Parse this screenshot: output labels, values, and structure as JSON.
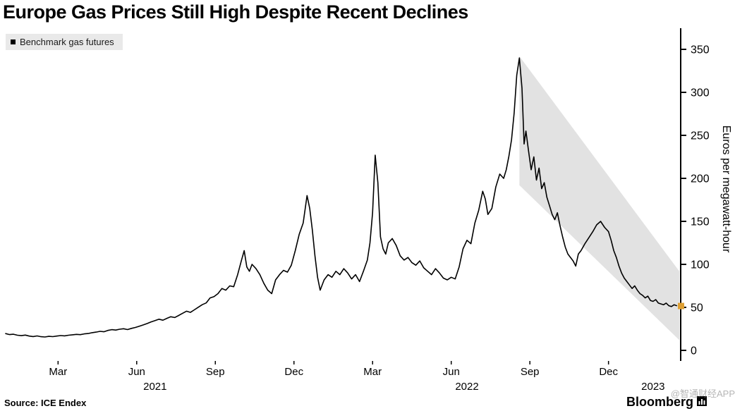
{
  "chart_data": {
    "type": "line",
    "title": "Europe Gas Prices Still High Despite Recent Declines",
    "legend": "Benchmark gas futures",
    "ylabel": "Euros per megawatt-hour",
    "source": "Source: ICE Endex",
    "brand": "Bloomberg",
    "watermark": "@智通财经APP",
    "ylim": [
      0,
      350
    ],
    "yticks": [
      0,
      50,
      100,
      150,
      200,
      250,
      300,
      350
    ],
    "x_unit": "months since Jan 2021",
    "xlim": [
      0,
      25.7
    ],
    "xticks": [
      {
        "label": "Mar",
        "m": 2
      },
      {
        "label": "Jun",
        "m": 5
      },
      {
        "label": "Sep",
        "m": 8
      },
      {
        "label": "Dec",
        "m": 11
      },
      {
        "label": "Mar",
        "m": 14
      },
      {
        "label": "Jun",
        "m": 17
      },
      {
        "label": "Sep",
        "m": 20
      },
      {
        "label": "Dec",
        "m": 23
      }
    ],
    "year_labels": [
      {
        "label": "2021",
        "m": 5.7
      },
      {
        "label": "2022",
        "m": 17.6
      },
      {
        "label": "2023",
        "m": 24.7
      }
    ],
    "band": {
      "x": [
        19.6,
        25.7
      ],
      "top": [
        342,
        92
      ],
      "bottom": [
        192,
        12
      ],
      "fill": "#e2e2e2"
    },
    "last_price_marker": {
      "value": 52,
      "color": "#dd9f33"
    },
    "colors": {
      "line": "#000000",
      "axis": "#000000",
      "legend_bg": "#e9e9e9"
    },
    "series": [
      {
        "name": "Benchmark gas futures",
        "color": "#000000",
        "points": [
          [
            0,
            19.5
          ],
          [
            0.15,
            18.4
          ],
          [
            0.3,
            18.8
          ],
          [
            0.45,
            17.6
          ],
          [
            0.6,
            17.1
          ],
          [
            0.75,
            17.8
          ],
          [
            0.9,
            16.6
          ],
          [
            1.05,
            16.1
          ],
          [
            1.2,
            16.8
          ],
          [
            1.35,
            15.9
          ],
          [
            1.5,
            15.6
          ],
          [
            1.65,
            16.3
          ],
          [
            1.8,
            16.0
          ],
          [
            1.95,
            16.6
          ],
          [
            2.1,
            17.2
          ],
          [
            2.25,
            16.9
          ],
          [
            2.4,
            17.6
          ],
          [
            2.55,
            18.1
          ],
          [
            2.7,
            18.6
          ],
          [
            2.85,
            18.3
          ],
          [
            3.0,
            19.2
          ],
          [
            3.15,
            19.6
          ],
          [
            3.3,
            20.6
          ],
          [
            3.45,
            21.2
          ],
          [
            3.6,
            22.1
          ],
          [
            3.75,
            21.6
          ],
          [
            3.9,
            23.2
          ],
          [
            4.05,
            24.1
          ],
          [
            4.2,
            23.6
          ],
          [
            4.35,
            24.6
          ],
          [
            4.5,
            25.2
          ],
          [
            4.65,
            24.2
          ],
          [
            4.8,
            25.6
          ],
          [
            4.95,
            26.6
          ],
          [
            5.1,
            28.1
          ],
          [
            5.25,
            29.6
          ],
          [
            5.4,
            31.2
          ],
          [
            5.55,
            33.1
          ],
          [
            5.7,
            34.6
          ],
          [
            5.85,
            36.2
          ],
          [
            6.0,
            35.1
          ],
          [
            6.15,
            37.2
          ],
          [
            6.3,
            39.1
          ],
          [
            6.45,
            38.2
          ],
          [
            6.6,
            40.6
          ],
          [
            6.75,
            43.1
          ],
          [
            6.9,
            45.6
          ],
          [
            7.05,
            44.2
          ],
          [
            7.2,
            47.1
          ],
          [
            7.35,
            50.2
          ],
          [
            7.5,
            53.1
          ],
          [
            7.65,
            55.2
          ],
          [
            7.8,
            61.0
          ],
          [
            7.95,
            62.5
          ],
          [
            8.1,
            66.0
          ],
          [
            8.25,
            72.0
          ],
          [
            8.4,
            70.0
          ],
          [
            8.55,
            75.0
          ],
          [
            8.7,
            74.0
          ],
          [
            8.85,
            88.0
          ],
          [
            9.0,
            105.0
          ],
          [
            9.1,
            116.0
          ],
          [
            9.2,
            97.0
          ],
          [
            9.3,
            92.0
          ],
          [
            9.4,
            100.0
          ],
          [
            9.55,
            95.0
          ],
          [
            9.7,
            88.0
          ],
          [
            9.85,
            78.0
          ],
          [
            10.0,
            70.0
          ],
          [
            10.15,
            66.0
          ],
          [
            10.3,
            82.0
          ],
          [
            10.45,
            88.0
          ],
          [
            10.6,
            93.0
          ],
          [
            10.75,
            91.0
          ],
          [
            10.9,
            99.0
          ],
          [
            11.05,
            116.0
          ],
          [
            11.2,
            135.0
          ],
          [
            11.35,
            148.0
          ],
          [
            11.5,
            180.0
          ],
          [
            11.6,
            165.0
          ],
          [
            11.7,
            140.0
          ],
          [
            11.8,
            110.0
          ],
          [
            11.9,
            85.0
          ],
          [
            12.0,
            70.0
          ],
          [
            12.15,
            82.0
          ],
          [
            12.3,
            88.0
          ],
          [
            12.45,
            85.0
          ],
          [
            12.6,
            92.0
          ],
          [
            12.75,
            88.0
          ],
          [
            12.9,
            95.0
          ],
          [
            13.05,
            90.0
          ],
          [
            13.2,
            83.0
          ],
          [
            13.35,
            88.0
          ],
          [
            13.5,
            80.0
          ],
          [
            13.65,
            92.0
          ],
          [
            13.8,
            105.0
          ],
          [
            13.9,
            125.0
          ],
          [
            14.0,
            160.0
          ],
          [
            14.1,
            227.0
          ],
          [
            14.2,
            195.0
          ],
          [
            14.3,
            132.0
          ],
          [
            14.4,
            118.0
          ],
          [
            14.5,
            112.0
          ],
          [
            14.6,
            125.0
          ],
          [
            14.75,
            130.0
          ],
          [
            14.9,
            122.0
          ],
          [
            15.05,
            110.0
          ],
          [
            15.2,
            105.0
          ],
          [
            15.35,
            108.0
          ],
          [
            15.5,
            102.0
          ],
          [
            15.65,
            99.0
          ],
          [
            15.8,
            104.0
          ],
          [
            15.95,
            96.0
          ],
          [
            16.1,
            92.0
          ],
          [
            16.25,
            88.0
          ],
          [
            16.4,
            95.0
          ],
          [
            16.55,
            90.0
          ],
          [
            16.7,
            84.0
          ],
          [
            16.85,
            82.0
          ],
          [
            17.0,
            85.0
          ],
          [
            17.15,
            83.0
          ],
          [
            17.3,
            97.0
          ],
          [
            17.45,
            118.0
          ],
          [
            17.6,
            128.0
          ],
          [
            17.75,
            124.0
          ],
          [
            17.9,
            148.0
          ],
          [
            18.05,
            163.0
          ],
          [
            18.2,
            185.0
          ],
          [
            18.3,
            176.0
          ],
          [
            18.4,
            158.0
          ],
          [
            18.55,
            165.0
          ],
          [
            18.7,
            190.0
          ],
          [
            18.85,
            205.0
          ],
          [
            19.0,
            200.0
          ],
          [
            19.1,
            210.0
          ],
          [
            19.2,
            226.0
          ],
          [
            19.3,
            245.0
          ],
          [
            19.4,
            276.0
          ],
          [
            19.5,
            320.0
          ],
          [
            19.6,
            340.0
          ],
          [
            19.7,
            305.0
          ],
          [
            19.78,
            240.0
          ],
          [
            19.85,
            255.0
          ],
          [
            19.95,
            232.0
          ],
          [
            20.05,
            210.0
          ],
          [
            20.15,
            225.0
          ],
          [
            20.25,
            198.0
          ],
          [
            20.35,
            212.0
          ],
          [
            20.45,
            188.0
          ],
          [
            20.55,
            195.0
          ],
          [
            20.65,
            178.0
          ],
          [
            20.75,
            168.0
          ],
          [
            20.85,
            158.0
          ],
          [
            20.95,
            152.0
          ],
          [
            21.05,
            160.0
          ],
          [
            21.15,
            145.0
          ],
          [
            21.25,
            132.0
          ],
          [
            21.35,
            120.0
          ],
          [
            21.45,
            112.0
          ],
          [
            21.55,
            108.0
          ],
          [
            21.65,
            104.0
          ],
          [
            21.75,
            98.0
          ],
          [
            21.85,
            112.0
          ],
          [
            21.95,
            116.0
          ],
          [
            22.1,
            124.0
          ],
          [
            22.25,
            131.0
          ],
          [
            22.4,
            138.0
          ],
          [
            22.55,
            146.0
          ],
          [
            22.7,
            150.0
          ],
          [
            22.85,
            143.0
          ],
          [
            23.0,
            138.0
          ],
          [
            23.1,
            128.0
          ],
          [
            23.2,
            116.0
          ],
          [
            23.3,
            108.0
          ],
          [
            23.4,
            98.0
          ],
          [
            23.5,
            90.0
          ],
          [
            23.6,
            84.0
          ],
          [
            23.7,
            80.0
          ],
          [
            23.8,
            76.0
          ],
          [
            23.9,
            72.0
          ],
          [
            24.0,
            75.0
          ],
          [
            24.1,
            70.0
          ],
          [
            24.2,
            66.0
          ],
          [
            24.3,
            64.0
          ],
          [
            24.4,
            61.0
          ],
          [
            24.5,
            63.0
          ],
          [
            24.6,
            58.0
          ],
          [
            24.7,
            57.0
          ],
          [
            24.8,
            59.0
          ],
          [
            24.9,
            55.0
          ],
          [
            25.0,
            54.0
          ],
          [
            25.1,
            53.0
          ],
          [
            25.2,
            55.0
          ],
          [
            25.3,
            52.0
          ],
          [
            25.4,
            51.0
          ],
          [
            25.5,
            53.0
          ],
          [
            25.6,
            52.0
          ]
        ]
      }
    ]
  }
}
